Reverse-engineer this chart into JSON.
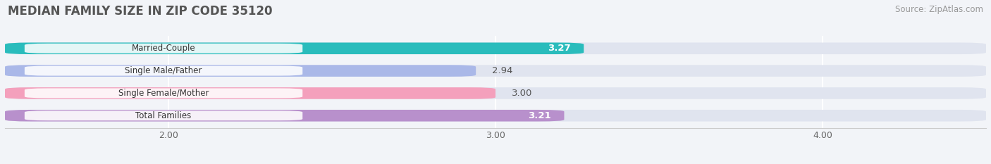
{
  "title": "MEDIAN FAMILY SIZE IN ZIP CODE 35120",
  "source": "Source: ZipAtlas.com",
  "categories": [
    "Married-Couple",
    "Single Male/Father",
    "Single Female/Mother",
    "Total Families"
  ],
  "values": [
    3.27,
    2.94,
    3.0,
    3.21
  ],
  "bar_colors": [
    "#2abcbc",
    "#aab8e8",
    "#f4a0bc",
    "#b890cc"
  ],
  "track_color": "#e0e4ef",
  "background_color": "#f2f4f8",
  "title_fontsize": 12,
  "source_fontsize": 8.5,
  "bar_height": 0.52,
  "figsize": [
    14.06,
    2.33
  ],
  "dpi": 100,
  "xlim_left": 1.5,
  "xlim_right": 4.5,
  "xstart": 1.5,
  "xticks": [
    2.0,
    3.0,
    4.0
  ],
  "xtick_labels": [
    "2.00",
    "3.00",
    "4.00"
  ]
}
